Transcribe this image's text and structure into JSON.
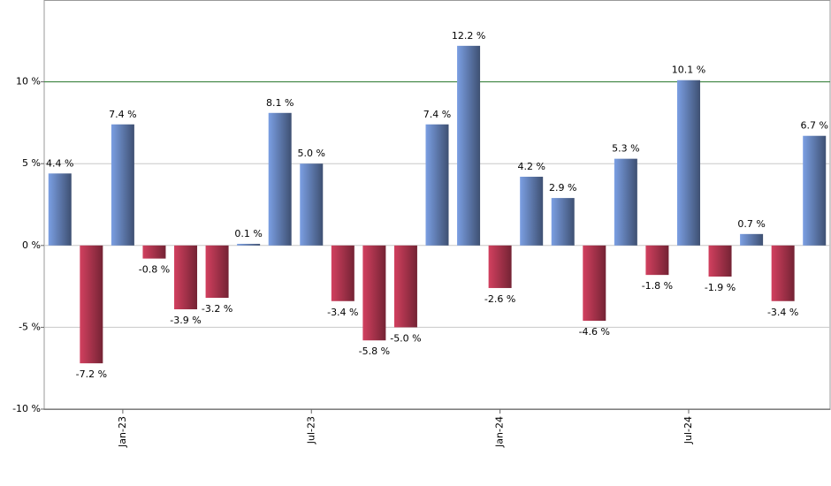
{
  "chart_data": {
    "type": "bar",
    "categories": [
      null,
      null,
      "Jan-23",
      null,
      null,
      null,
      null,
      null,
      "Jul-23",
      null,
      null,
      null,
      null,
      null,
      "Jan-24",
      null,
      null,
      null,
      null,
      null,
      "Jul-24",
      null,
      null,
      null,
      null
    ],
    "values": [
      4.4,
      -7.2,
      7.4,
      -0.8,
      -3.9,
      -3.2,
      0.1,
      8.1,
      5.0,
      -3.4,
      -5.8,
      -5.0,
      7.4,
      12.2,
      -2.6,
      4.2,
      2.9,
      -4.6,
      5.3,
      -1.8,
      10.1,
      -1.9,
      0.7,
      -3.4,
      6.7
    ],
    "value_labels": [
      "4.4 %",
      "-7.2 %",
      "7.4 %",
      "-0.8 %",
      "-3.9 %",
      "-3.2 %",
      "0.1 %",
      "8.1 %",
      "5.0 %",
      "-3.4 %",
      "-5.8 %",
      "-5.0 %",
      "7.4 %",
      "12.2 %",
      "-2.6 %",
      "4.2 %",
      "2.9 %",
      "-4.6 %",
      "5.3 %",
      "-1.8 %",
      "10.1 %",
      "-1.9 %",
      "0.7 %",
      "-3.4 %",
      "6.7 %"
    ],
    "positive_color": "#7b9fe3",
    "negative_color": "#d2405f",
    "ylim": [
      -10,
      15
    ],
    "yticks": [
      {
        "value": -10,
        "label": "-10 %"
      },
      {
        "value": -5,
        "label": "-5 %"
      },
      {
        "value": 0,
        "label": "0 %"
      },
      {
        "value": 5,
        "label": "5 %"
      },
      {
        "value": 10,
        "label": "10 %"
      }
    ],
    "grid": true,
    "reference_line": {
      "value": 10,
      "color": "#2e7d32"
    }
  }
}
